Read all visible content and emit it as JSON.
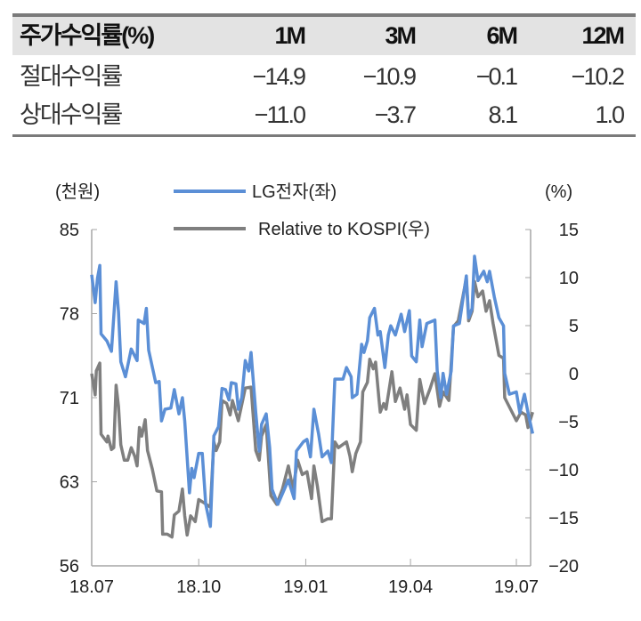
{
  "table": {
    "header": [
      "주가수익률(%)",
      "1M",
      "3M",
      "6M",
      "12M"
    ],
    "rows": [
      [
        "절대수익률",
        "−14.9",
        "−10.9",
        "−0.1",
        "−10.2"
      ],
      [
        "상대수익률",
        "−11.0",
        "−3.7",
        "8.1",
        "1.0"
      ]
    ]
  },
  "chart_data": {
    "type": "line",
    "left_axis_label": "(천원)",
    "right_axis_label": "(%)",
    "left_ticks": [
      "85",
      "78",
      "71",
      "63",
      "56"
    ],
    "left_ylim": [
      56,
      85
    ],
    "right_ticks": [
      "15",
      "10",
      "5",
      "0",
      "−5",
      "−10",
      "−15",
      "−20"
    ],
    "right_ylim": [
      -20,
      15
    ],
    "x_ticks": [
      "18.07",
      "18.10",
      "19.01",
      "19.04",
      "19.07"
    ],
    "x_tick_dates": [
      "2018-07-01",
      "2018-10-01",
      "2019-01-01",
      "2019-04-01",
      "2019-07-01"
    ],
    "grid": false,
    "legend_position": "top",
    "series": [
      {
        "name": "LG전자(좌)",
        "axis": "left",
        "color": "#5b8fd6",
        "points": [
          [
            "2018-07-01",
            81.1
          ],
          [
            "2018-07-04",
            78.7
          ],
          [
            "2018-07-06",
            80.8
          ],
          [
            "2018-07-08",
            81.9
          ],
          [
            "2018-07-09",
            76.0
          ],
          [
            "2018-07-14",
            75.4
          ],
          [
            "2018-07-18",
            74.5
          ],
          [
            "2018-07-22",
            80.5
          ],
          [
            "2018-07-24",
            77.9
          ],
          [
            "2018-07-26",
            73.6
          ],
          [
            "2018-07-30",
            72.3
          ],
          [
            "2018-08-04",
            74.7
          ],
          [
            "2018-08-09",
            73.7
          ],
          [
            "2018-08-10",
            77.2
          ],
          [
            "2018-08-15",
            76.9
          ],
          [
            "2018-08-17",
            78.2
          ],
          [
            "2018-08-19",
            74.6
          ],
          [
            "2018-08-25",
            71.8
          ],
          [
            "2018-08-28",
            71.9
          ],
          [
            "2018-08-30",
            68.5
          ],
          [
            "2018-09-02",
            69.5
          ],
          [
            "2018-09-07",
            69.6
          ],
          [
            "2018-09-10",
            71.2
          ],
          [
            "2018-09-14",
            69.1
          ],
          [
            "2018-09-17",
            70.5
          ],
          [
            "2018-09-19",
            68.5
          ],
          [
            "2018-09-23",
            62.3
          ],
          [
            "2018-09-25",
            64.4
          ],
          [
            "2018-09-27",
            63.6
          ],
          [
            "2018-10-01",
            65.7
          ],
          [
            "2018-10-04",
            65.7
          ],
          [
            "2018-10-07",
            61.3
          ],
          [
            "2018-10-11",
            59.4
          ],
          [
            "2018-10-14",
            67.2
          ],
          [
            "2018-10-18",
            68.0
          ],
          [
            "2018-10-21",
            71.3
          ],
          [
            "2018-10-24",
            71.2
          ],
          [
            "2018-10-27",
            70.3
          ],
          [
            "2018-10-29",
            71.8
          ],
          [
            "2018-11-02",
            71.7
          ],
          [
            "2018-11-04",
            69.5
          ],
          [
            "2018-11-07",
            70.5
          ],
          [
            "2018-11-10",
            73.7
          ],
          [
            "2018-11-13",
            72.8
          ],
          [
            "2018-11-15",
            74.4
          ],
          [
            "2018-11-19",
            69.2
          ],
          [
            "2018-11-22",
            65.9
          ],
          [
            "2018-11-24",
            68.2
          ],
          [
            "2018-11-28",
            69.1
          ],
          [
            "2018-12-01",
            66.2
          ],
          [
            "2018-12-03",
            62.6
          ],
          [
            "2018-12-08",
            61.3
          ],
          [
            "2018-12-17",
            63.4
          ],
          [
            "2018-12-22",
            61.8
          ],
          [
            "2018-12-24",
            65.9
          ],
          [
            "2018-12-30",
            66.7
          ],
          [
            "2019-01-02",
            66.9
          ],
          [
            "2019-01-05",
            65.4
          ],
          [
            "2019-01-08",
            69.5
          ],
          [
            "2019-01-12",
            67.4
          ],
          [
            "2019-01-15",
            65.4
          ],
          [
            "2019-01-20",
            65.9
          ],
          [
            "2019-01-23",
            64.9
          ],
          [
            "2019-01-26",
            72.1
          ],
          [
            "2019-02-02",
            72.1
          ],
          [
            "2019-02-05",
            73.1
          ],
          [
            "2019-02-09",
            72.3
          ],
          [
            "2019-02-10",
            70.5
          ],
          [
            "2019-02-14",
            70.8
          ],
          [
            "2019-02-18",
            75.1
          ],
          [
            "2019-02-20",
            74.4
          ],
          [
            "2019-02-23",
            75.4
          ],
          [
            "2019-02-25",
            77.4
          ],
          [
            "2019-03-01",
            78.2
          ],
          [
            "2019-03-04",
            75.9
          ],
          [
            "2019-03-06",
            76.2
          ],
          [
            "2019-03-10",
            73.1
          ],
          [
            "2019-03-13",
            75.9
          ],
          [
            "2019-03-15",
            76.7
          ],
          [
            "2019-03-19",
            75.9
          ],
          [
            "2019-03-24",
            77.7
          ],
          [
            "2019-03-27",
            76.2
          ],
          [
            "2019-03-31",
            78.0
          ],
          [
            "2019-04-02",
            74.1
          ],
          [
            "2019-04-06",
            73.6
          ],
          [
            "2019-04-09",
            77.2
          ],
          [
            "2019-04-11",
            74.9
          ],
          [
            "2019-04-15",
            76.9
          ],
          [
            "2019-04-22",
            77.2
          ],
          [
            "2019-04-24",
            72.8
          ],
          [
            "2019-04-27",
            70.5
          ],
          [
            "2019-04-29",
            72.6
          ],
          [
            "2019-05-02",
            70.8
          ],
          [
            "2019-05-06",
            72.8
          ],
          [
            "2019-05-08",
            76.7
          ],
          [
            "2019-05-13",
            76.9
          ],
          [
            "2019-05-19",
            81.0
          ],
          [
            "2019-05-21",
            77.4
          ],
          [
            "2019-05-24",
            78.2
          ],
          [
            "2019-05-26",
            82.7
          ],
          [
            "2019-05-29",
            80.6
          ],
          [
            "2019-06-03",
            81.4
          ],
          [
            "2019-06-06",
            80.5
          ],
          [
            "2019-06-08",
            81.4
          ],
          [
            "2019-06-12",
            79.2
          ],
          [
            "2019-06-16",
            77.4
          ],
          [
            "2019-06-20",
            76.7
          ],
          [
            "2019-06-21",
            72.6
          ],
          [
            "2019-06-25",
            70.8
          ],
          [
            "2019-07-01",
            71.0
          ],
          [
            "2019-07-04",
            69.2
          ],
          [
            "2019-07-08",
            70.8
          ],
          [
            "2019-07-11",
            69.2
          ],
          [
            "2019-07-15",
            67.4
          ]
        ]
      },
      {
        "name": "Relative to KOSPI(우)",
        "axis": "right",
        "color": "#7f7f7f",
        "points": [
          [
            "2018-07-01",
            0.0
          ],
          [
            "2018-07-04",
            -2.2
          ],
          [
            "2018-07-05",
            0.3
          ],
          [
            "2018-07-08",
            1.1
          ],
          [
            "2018-07-09",
            -6.3
          ],
          [
            "2018-07-14",
            -7.1
          ],
          [
            "2018-07-15",
            -6.5
          ],
          [
            "2018-07-18",
            -7.9
          ],
          [
            "2018-07-20",
            -7.7
          ],
          [
            "2018-07-22",
            -1.2
          ],
          [
            "2018-07-24",
            -3.4
          ],
          [
            "2018-07-26",
            -7.4
          ],
          [
            "2018-07-29",
            -9.0
          ],
          [
            "2018-08-01",
            -9.0
          ],
          [
            "2018-08-04",
            -7.7
          ],
          [
            "2018-08-07",
            -8.6
          ],
          [
            "2018-08-09",
            -9.6
          ],
          [
            "2018-08-11",
            -5.6
          ],
          [
            "2018-08-13",
            -6.5
          ],
          [
            "2018-08-16",
            -4.8
          ],
          [
            "2018-08-18",
            -8.0
          ],
          [
            "2018-08-22",
            -9.9
          ],
          [
            "2018-08-26",
            -12.2
          ],
          [
            "2018-08-30",
            -12.3
          ],
          [
            "2018-08-31",
            -16.7
          ],
          [
            "2018-09-04",
            -16.7
          ],
          [
            "2018-09-08",
            -17.0
          ],
          [
            "2018-09-10",
            -14.7
          ],
          [
            "2018-09-14",
            -14.3
          ],
          [
            "2018-09-17",
            -12.0
          ],
          [
            "2018-09-19",
            -14.8
          ],
          [
            "2018-09-21",
            -16.8
          ],
          [
            "2018-09-24",
            -14.8
          ],
          [
            "2018-09-28",
            -15.4
          ],
          [
            "2018-10-01",
            -13.1
          ],
          [
            "2018-10-05",
            -13.4
          ],
          [
            "2018-10-11",
            -13.9
          ],
          [
            "2018-10-14",
            -7.1
          ],
          [
            "2018-10-16",
            -8.0
          ],
          [
            "2018-10-19",
            -7.1
          ],
          [
            "2018-10-21",
            -2.8
          ],
          [
            "2018-10-25",
            -3.1
          ],
          [
            "2018-10-28",
            -4.3
          ],
          [
            "2018-10-30",
            -2.8
          ],
          [
            "2018-11-04",
            -4.9
          ],
          [
            "2018-11-10",
            -1.5
          ],
          [
            "2018-11-15",
            -1.4
          ],
          [
            "2018-11-19",
            -8.0
          ],
          [
            "2018-11-22",
            -9.0
          ],
          [
            "2018-11-24",
            -6.5
          ],
          [
            "2018-11-28",
            -5.3
          ],
          [
            "2018-12-02",
            -12.7
          ],
          [
            "2018-12-07",
            -13.6
          ],
          [
            "2018-12-12",
            -12.0
          ],
          [
            "2018-12-17",
            -9.6
          ],
          [
            "2018-12-21",
            -12.0
          ],
          [
            "2018-12-25",
            -9.0
          ],
          [
            "2018-12-29",
            -10.5
          ],
          [
            "2019-01-02",
            -10.2
          ],
          [
            "2019-01-06",
            -13.0
          ],
          [
            "2019-01-08",
            -9.6
          ],
          [
            "2019-01-11",
            -11.7
          ],
          [
            "2019-01-15",
            -15.4
          ],
          [
            "2019-01-20",
            -15.1
          ],
          [
            "2019-01-23",
            -15.1
          ],
          [
            "2019-01-26",
            -7.1
          ],
          [
            "2019-01-29",
            -7.7
          ],
          [
            "2019-02-05",
            -7.1
          ],
          [
            "2019-02-08",
            -8.6
          ],
          [
            "2019-02-10",
            -10.2
          ],
          [
            "2019-02-13",
            -8.3
          ],
          [
            "2019-02-17",
            -7.1
          ],
          [
            "2019-02-19",
            -1.9
          ],
          [
            "2019-02-23",
            -0.9
          ],
          [
            "2019-02-25",
            1.5
          ],
          [
            "2019-02-28",
            0.5
          ],
          [
            "2019-03-02",
            1.2
          ],
          [
            "2019-03-05",
            -2.8
          ],
          [
            "2019-03-06",
            -4.0
          ],
          [
            "2019-03-09",
            -3.1
          ],
          [
            "2019-03-11",
            -3.7
          ],
          [
            "2019-03-16",
            0.2
          ],
          [
            "2019-03-19",
            -2.9
          ],
          [
            "2019-03-23",
            -1.5
          ],
          [
            "2019-03-27",
            -3.7
          ],
          [
            "2019-03-29",
            -2.2
          ],
          [
            "2019-04-01",
            -5.3
          ],
          [
            "2019-04-06",
            -5.9
          ],
          [
            "2019-04-09",
            -0.6
          ],
          [
            "2019-04-13",
            -3.1
          ],
          [
            "2019-04-18",
            -1.5
          ],
          [
            "2019-04-22",
            0.0
          ],
          [
            "2019-04-26",
            -3.4
          ],
          [
            "2019-04-29",
            -1.9
          ],
          [
            "2019-05-04",
            -2.8
          ],
          [
            "2019-05-08",
            4.9
          ],
          [
            "2019-05-12",
            5.5
          ],
          [
            "2019-05-16",
            8.0
          ],
          [
            "2019-05-19",
            9.9
          ],
          [
            "2019-05-21",
            5.5
          ],
          [
            "2019-05-24",
            6.5
          ],
          [
            "2019-05-26",
            9.6
          ],
          [
            "2019-05-29",
            8.0
          ],
          [
            "2019-06-02",
            8.6
          ],
          [
            "2019-06-05",
            6.5
          ],
          [
            "2019-06-08",
            7.6
          ],
          [
            "2019-06-11",
            5.2
          ],
          [
            "2019-06-16",
            1.9
          ],
          [
            "2019-06-20",
            1.6
          ],
          [
            "2019-06-21",
            -2.5
          ],
          [
            "2019-06-26",
            -3.7
          ],
          [
            "2019-07-01",
            -4.9
          ],
          [
            "2019-07-05",
            -4.0
          ],
          [
            "2019-07-09",
            -4.3
          ],
          [
            "2019-07-11",
            -5.6
          ],
          [
            "2019-07-15",
            -4.0
          ]
        ]
      }
    ]
  }
}
